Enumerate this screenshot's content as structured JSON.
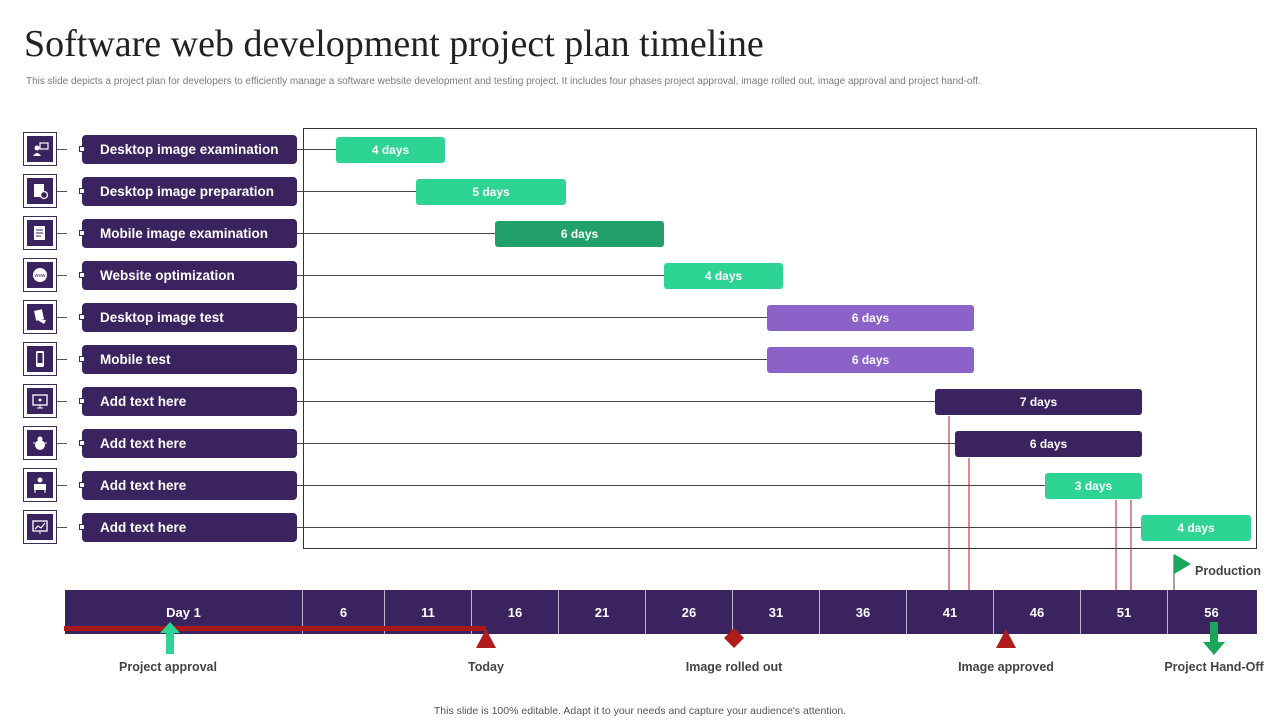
{
  "header": {
    "title": "Software web development project plan timeline",
    "subtitle": "This slide depicts a project plan  for developers to efficiently manage a software website development and testing project. It includes  four phases project approval, image rolled out, image  approval and project hand-off."
  },
  "footer": {
    "text": "This slide is 100% editable.  Adapt it to your needs and capture your audience's attention."
  },
  "colors": {
    "purple": "#3b2360",
    "teal": "#2ed494",
    "dark_green": "#22a06b",
    "lavender": "#8b62c8",
    "red": "#b01c1c",
    "green_marker": "#1aa65a"
  },
  "chart_data": {
    "type": "gantt",
    "tasks": [
      {
        "label": "Desktop  image examination",
        "duration": "4 days",
        "icon": "user-presentation-icon",
        "color": "teal"
      },
      {
        "label": "Desktop  image preparation",
        "duration": "5 days",
        "icon": "document-gear-icon",
        "color": "teal"
      },
      {
        "label": "Mobile image examination",
        "duration": "6 days",
        "icon": "document-edit-icon",
        "color": "dark_green"
      },
      {
        "label": "Website optimization",
        "duration": "4 days",
        "icon": "www-globe-icon",
        "color": "teal"
      },
      {
        "label": "Desktop  image test",
        "duration": "6 days",
        "icon": "hand-cards-icon",
        "color": "lavender"
      },
      {
        "label": "Mobile test",
        "duration": "6 days",
        "icon": "mobile-phone-icon",
        "color": "lavender"
      },
      {
        "label": "Add text here",
        "duration": "7 days",
        "icon": "monitor-code-icon",
        "color": "purple"
      },
      {
        "label": "Add text here",
        "duration": "6 days",
        "icon": "bug-icon",
        "color": "purple"
      },
      {
        "label": "Add text here",
        "duration": "3 days",
        "icon": "developer-desk-icon",
        "color": "teal"
      },
      {
        "label": "Add text here",
        "duration": "4 days",
        "icon": "monitor-chart-icon",
        "color": "teal"
      }
    ],
    "axis_ticks": [
      "Day 1",
      "6",
      "11",
      "16",
      "21",
      "26",
      "31",
      "36",
      "41",
      "46",
      "51",
      "56"
    ],
    "milestones": [
      {
        "label": "Project approval",
        "marker": "up-arrow",
        "color": "teal"
      },
      {
        "label": "Today",
        "marker": "triangle",
        "color": "red"
      },
      {
        "label": "Image rolled out",
        "marker": "diamond",
        "color": "red"
      },
      {
        "label": "Image approved",
        "marker": "triangle",
        "color": "red"
      },
      {
        "label": "Project Hand-Off",
        "marker": "down-arrow",
        "color": "green_marker"
      }
    ],
    "flag": {
      "label": "Production",
      "color": "green_marker"
    }
  }
}
